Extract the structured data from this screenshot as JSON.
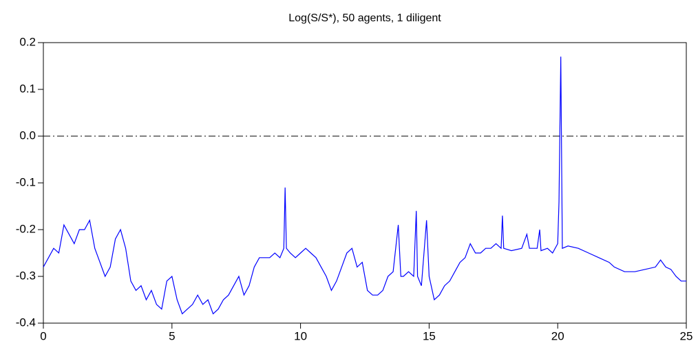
{
  "chart_data": {
    "type": "line",
    "title": "Log(S/S*), 50 agents, 1 diligent",
    "x": [
      0,
      0.2,
      0.4,
      0.6,
      0.8,
      1.0,
      1.2,
      1.4,
      1.6,
      1.8,
      2.0,
      2.2,
      2.4,
      2.6,
      2.8,
      3.0,
      3.2,
      3.4,
      3.6,
      3.8,
      4.0,
      4.2,
      4.4,
      4.6,
      4.8,
      5.0,
      5.2,
      5.4,
      5.6,
      5.8,
      6.0,
      6.2,
      6.4,
      6.6,
      6.8,
      7.0,
      7.2,
      7.4,
      7.6,
      7.8,
      8.0,
      8.2,
      8.4,
      8.6,
      8.8,
      9.0,
      9.2,
      9.35,
      9.4,
      9.45,
      9.6,
      9.8,
      10.0,
      10.2,
      10.4,
      10.6,
      10.8,
      11.0,
      11.2,
      11.4,
      11.6,
      11.8,
      12.0,
      12.2,
      12.4,
      12.6,
      12.8,
      13.0,
      13.2,
      13.4,
      13.6,
      13.8,
      13.9,
      14.0,
      14.2,
      14.4,
      14.5,
      14.55,
      14.7,
      14.9,
      15.0,
      15.2,
      15.4,
      15.6,
      15.8,
      16.0,
      16.2,
      16.4,
      16.6,
      16.8,
      17.0,
      17.2,
      17.4,
      17.6,
      17.8,
      17.85,
      17.9,
      18.2,
      18.6,
      18.8,
      18.9,
      19.2,
      19.3,
      19.35,
      19.6,
      19.8,
      20.0,
      20.05,
      20.12,
      20.18,
      20.4,
      20.8,
      21.2,
      21.6,
      22.0,
      22.2,
      22.6,
      23.0,
      23.4,
      23.8,
      24.0,
      24.2,
      24.4,
      24.6,
      24.8,
      25.0
    ],
    "series": [
      {
        "color": "#0000ff",
        "values": [
          -0.28,
          -0.26,
          -0.24,
          -0.25,
          -0.19,
          -0.21,
          -0.23,
          -0.2,
          -0.2,
          -0.18,
          -0.24,
          -0.27,
          -0.3,
          -0.28,
          -0.22,
          -0.2,
          -0.24,
          -0.31,
          -0.33,
          -0.32,
          -0.35,
          -0.33,
          -0.36,
          -0.37,
          -0.31,
          -0.3,
          -0.35,
          -0.38,
          -0.37,
          -0.36,
          -0.34,
          -0.36,
          -0.35,
          -0.38,
          -0.37,
          -0.35,
          -0.34,
          -0.32,
          -0.3,
          -0.34,
          -0.32,
          -0.28,
          -0.26,
          -0.26,
          -0.26,
          -0.25,
          -0.26,
          -0.24,
          -0.11,
          -0.24,
          -0.25,
          -0.26,
          -0.25,
          -0.24,
          -0.25,
          -0.26,
          -0.28,
          -0.3,
          -0.33,
          -0.31,
          -0.28,
          -0.25,
          -0.24,
          -0.28,
          -0.27,
          -0.33,
          -0.34,
          -0.34,
          -0.33,
          -0.3,
          -0.29,
          -0.19,
          -0.3,
          -0.3,
          -0.29,
          -0.3,
          -0.16,
          -0.3,
          -0.32,
          -0.18,
          -0.3,
          -0.35,
          -0.34,
          -0.32,
          -0.31,
          -0.29,
          -0.27,
          -0.26,
          -0.23,
          -0.25,
          -0.25,
          -0.24,
          -0.24,
          -0.23,
          -0.24,
          -0.17,
          -0.24,
          -0.245,
          -0.24,
          -0.21,
          -0.24,
          -0.24,
          -0.2,
          -0.245,
          -0.24,
          -0.25,
          -0.23,
          -0.14,
          0.17,
          -0.24,
          -0.235,
          -0.24,
          -0.25,
          -0.26,
          -0.27,
          -0.28,
          -0.29,
          -0.29,
          -0.285,
          -0.28,
          -0.265,
          -0.28,
          -0.285,
          -0.3,
          -0.31,
          -0.31
        ]
      }
    ],
    "hline": 0,
    "xlim": [
      0,
      25
    ],
    "xticks": [
      0,
      5,
      10,
      15,
      20,
      25
    ],
    "ylim": [
      -0.4,
      0.2
    ],
    "yticks": [
      -0.4,
      -0.3,
      -0.2,
      -0.1,
      {
        "value": 0,
        "label": "0.0"
      },
      0.1,
      0.2
    ]
  }
}
